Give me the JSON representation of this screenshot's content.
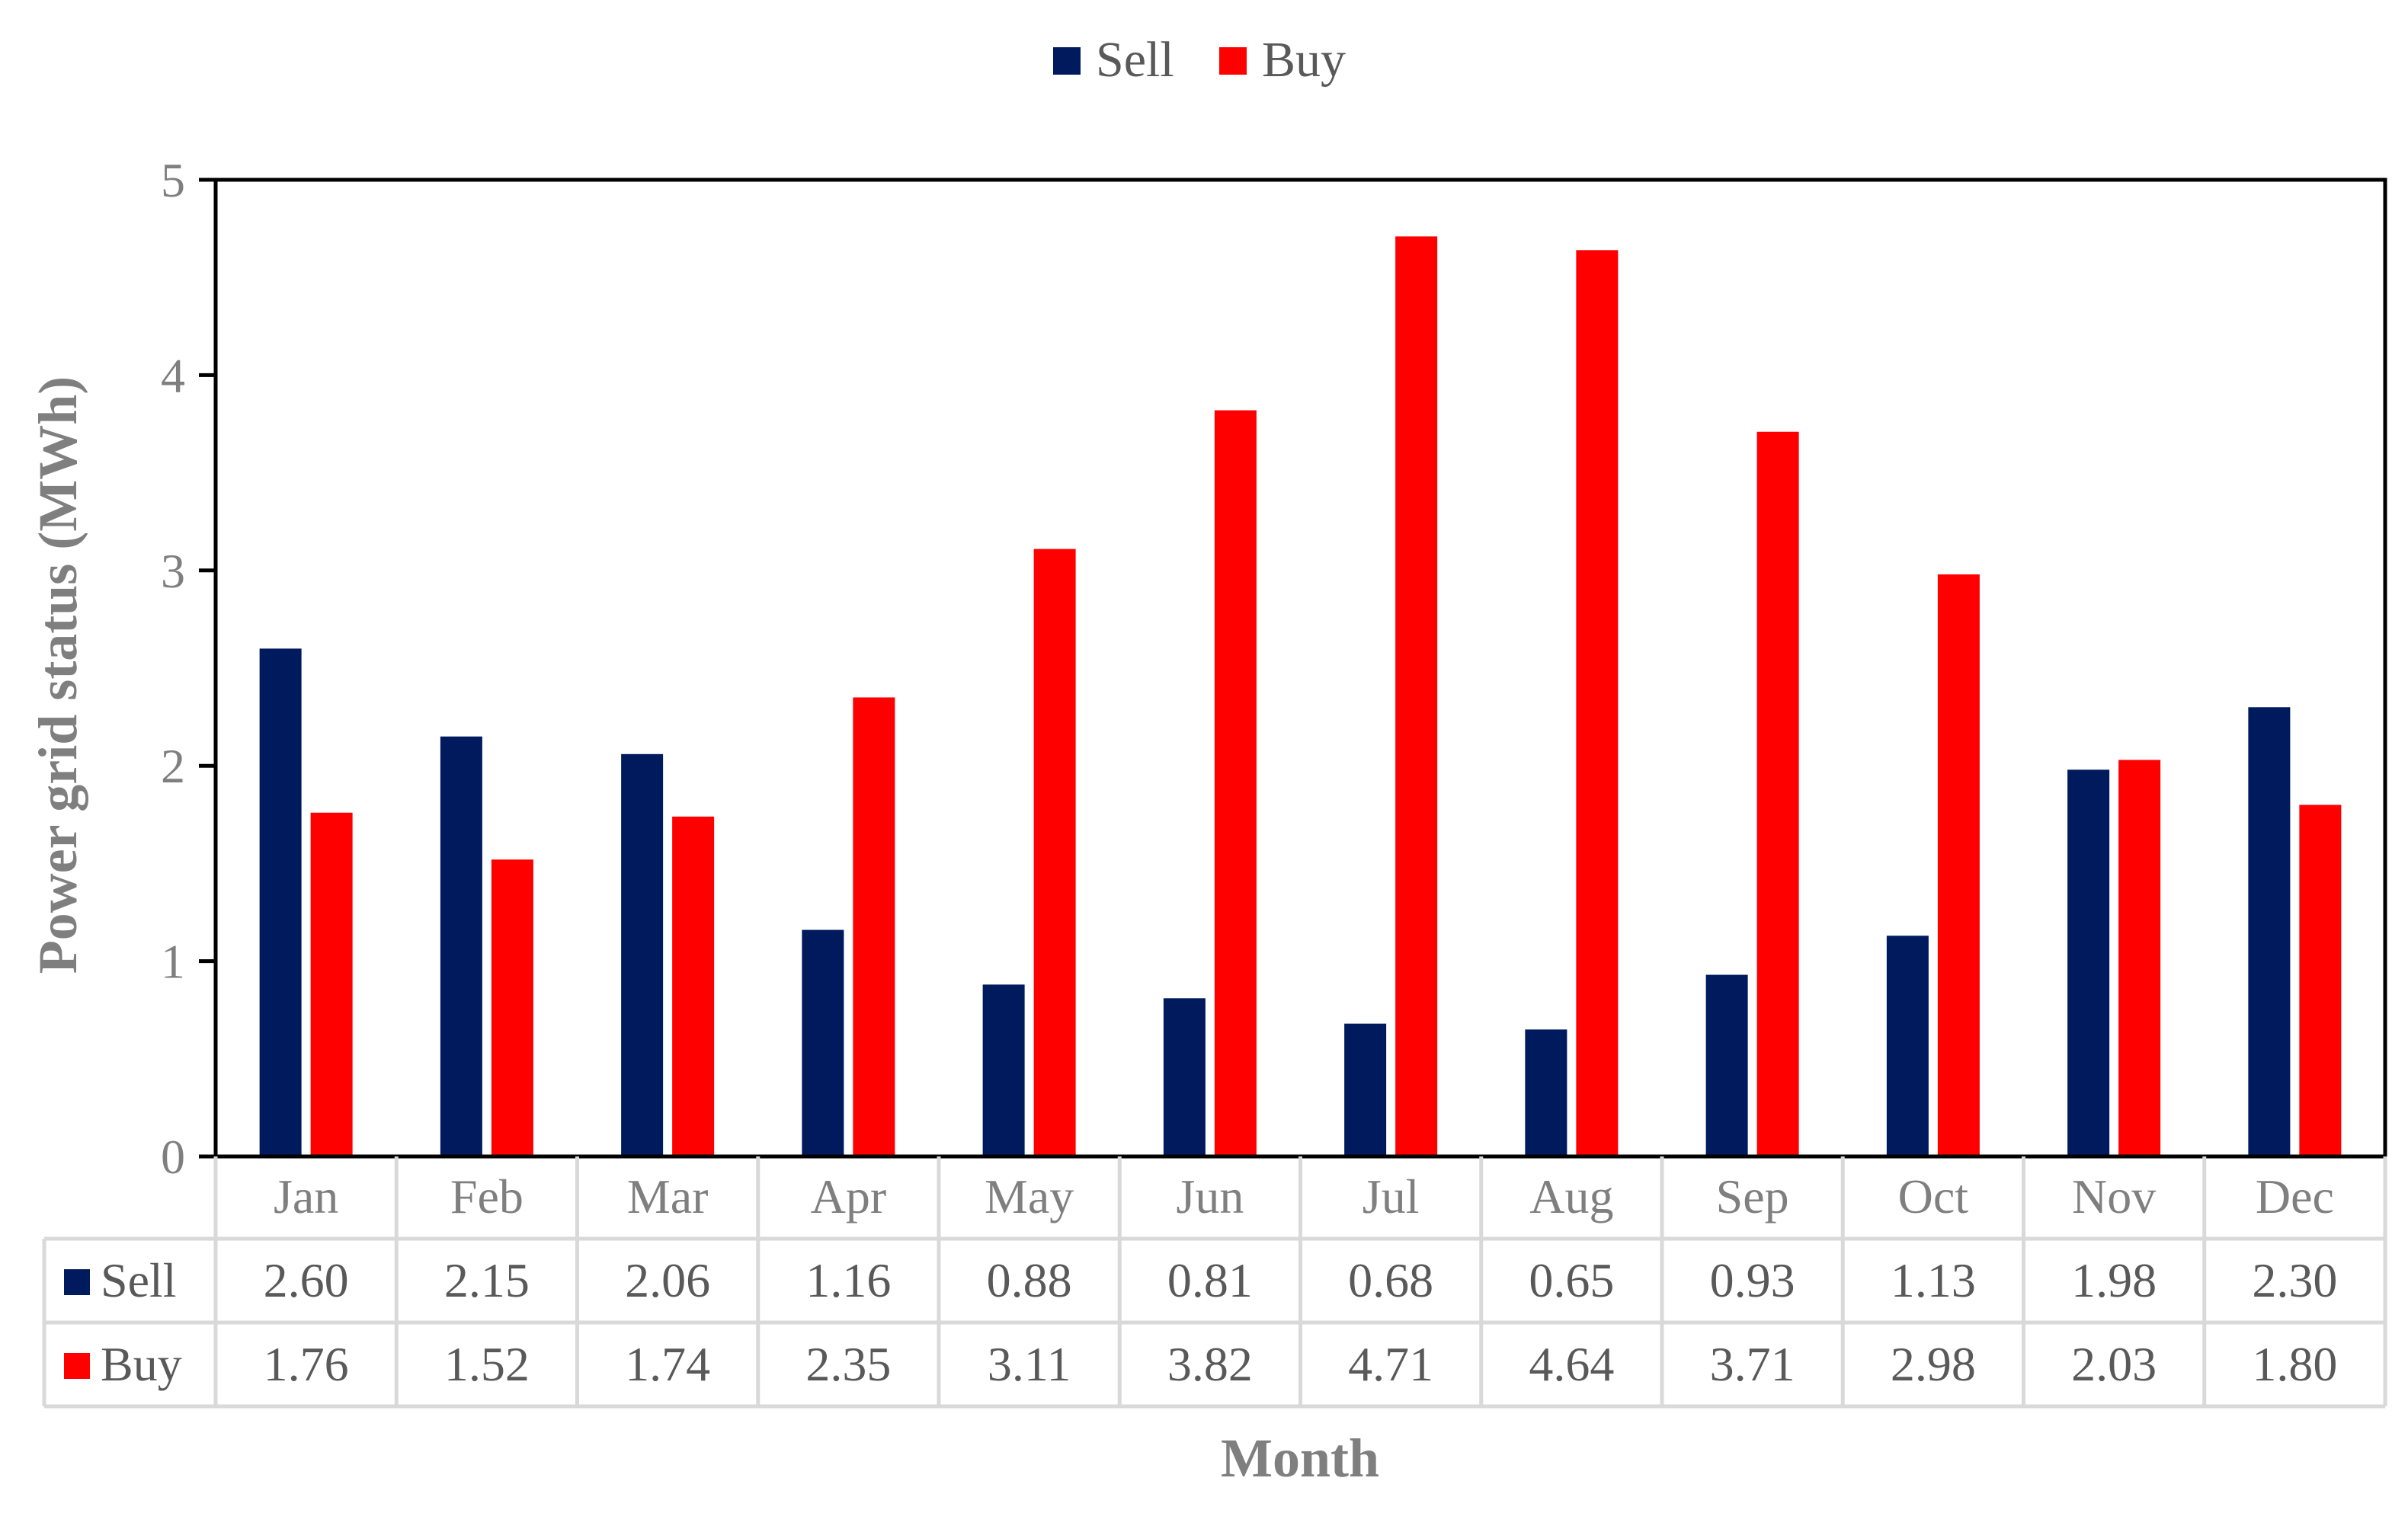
{
  "chart_data": {
    "type": "bar",
    "title": "",
    "xlabel": "Month",
    "ylabel": "Power grid status (MWh)",
    "ylim": [
      0,
      5
    ],
    "yticks": [
      "0",
      "1",
      "2",
      "3",
      "4",
      "5"
    ],
    "grid": false,
    "legend_position": "top-center",
    "categories": [
      "Jan",
      "Feb",
      "Mar",
      "Apr",
      "May",
      "Jun",
      "Jul",
      "Aug",
      "Sep",
      "Oct",
      "Nov",
      "Dec"
    ],
    "series": [
      {
        "name": "Sell",
        "color": "#001a5e",
        "values": [
          2.6,
          2.15,
          2.06,
          1.16,
          0.88,
          0.81,
          0.68,
          0.65,
          0.93,
          1.13,
          1.98,
          2.3
        ],
        "labels": [
          "2.60",
          "2.15",
          "2.06",
          "1.16",
          "0.88",
          "0.81",
          "0.68",
          "0.65",
          "0.93",
          "1.13",
          "1.98",
          "2.30"
        ]
      },
      {
        "name": "Buy",
        "color": "#ff0000",
        "values": [
          1.76,
          1.52,
          1.74,
          2.35,
          3.11,
          3.82,
          4.71,
          4.64,
          3.71,
          2.98,
          2.03,
          1.8
        ],
        "labels": [
          "1.76",
          "1.52",
          "1.74",
          "2.35",
          "3.11",
          "3.82",
          "4.71",
          "4.64",
          "3.71",
          "2.98",
          "2.03",
          "1.80"
        ]
      }
    ]
  }
}
